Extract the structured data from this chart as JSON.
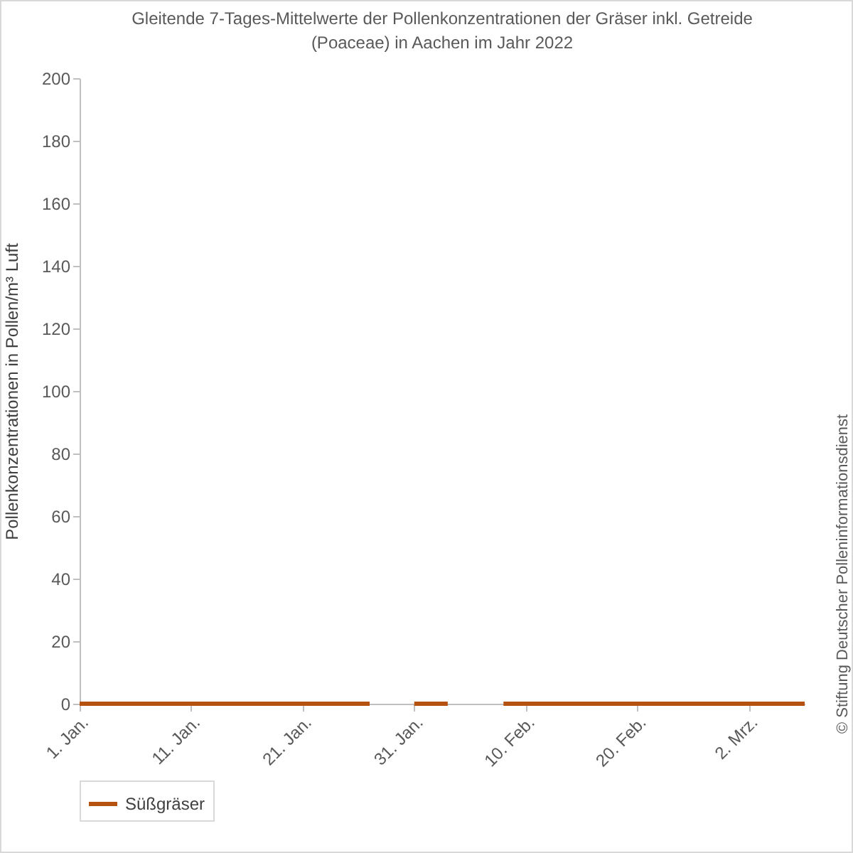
{
  "chart_data": {
    "type": "line",
    "title": "Gleitende 7-Tages-Mittelwerte der Pollenkonzentrationen der Gräser inkl. Getreide (Poaceae) in Aachen im Jahr 2022",
    "ylabel": "Pollenkonzentrationen in Pollen/m³ Luft",
    "x": [
      "2022-01-01",
      "2022-01-27",
      "2022-01-29",
      "2022-01-31",
      "2022-02-03",
      "2022-02-05",
      "2022-02-08",
      "2022-03-07"
    ],
    "series": [
      {
        "name": "Süßgräser",
        "color": "#b5520f",
        "values": [
          0,
          0,
          null,
          0,
          0,
          null,
          0,
          0
        ]
      }
    ],
    "xlim": [
      "2022-01-01",
      "2022-03-07"
    ],
    "xticks": [
      {
        "value": "2022-01-01",
        "label": "1. Jan."
      },
      {
        "value": "2022-01-11",
        "label": "11. Jan."
      },
      {
        "value": "2022-01-21",
        "label": "21. Jan."
      },
      {
        "value": "2022-01-31",
        "label": "31. Jan."
      },
      {
        "value": "2022-02-10",
        "label": "10. Feb."
      },
      {
        "value": "2022-02-20",
        "label": "20. Feb."
      },
      {
        "value": "2022-03-02",
        "label": "2. Mrz."
      }
    ],
    "ylim": [
      0,
      200
    ],
    "yticks": [
      0,
      20,
      40,
      60,
      80,
      100,
      120,
      140,
      160,
      180,
      200
    ],
    "grid": false,
    "legend": "bottom",
    "marker": "none",
    "line_style": "solid",
    "annotations": [
      "© Stiftung Deutscher Polleninformationsdienst"
    ]
  }
}
